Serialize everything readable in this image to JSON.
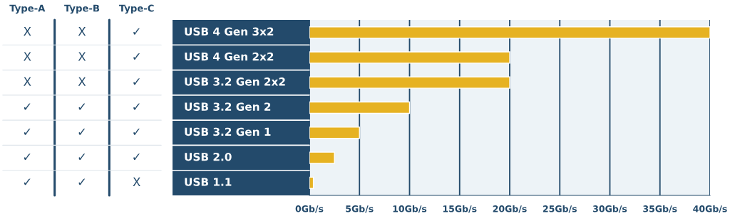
{
  "chart_data": [
    {
      "type": "other",
      "categories": [
        "Type-A",
        "Type-B",
        "Type-C"
      ],
      "annotations": [
        "X",
        "X",
        "✓",
        "X",
        "X",
        "✓",
        "X",
        "X",
        "✓",
        "✓",
        "✓",
        "✓",
        "✓",
        "✓",
        "✓",
        "✓",
        "✓",
        "✓",
        "✓",
        "✓",
        "X"
      ]
    },
    {
      "type": "bar",
      "orientation": "horizontal",
      "categories": [
        "USB 4 Gen 3x2",
        "USB 4 Gen 2x2",
        "USB 3.2 Gen 2x2",
        "USB 3.2 Gen 2",
        "USB 3.2 Gen 1",
        "USB 2.0",
        "USB 1.1"
      ],
      "values": [
        40,
        20,
        20,
        10,
        5,
        2.5,
        0.4
      ],
      "color": "#e6b222",
      "xlim": [
        0,
        40
      ],
      "xticks": [
        {
          "value": 0,
          "label": "0Gb/s"
        },
        {
          "value": 5,
          "label": "5Gb/s"
        },
        {
          "value": 10,
          "label": "10Gb/s"
        },
        {
          "value": 15,
          "label": "15Gb/s"
        },
        {
          "value": 20,
          "label": "20Gb/s"
        },
        {
          "value": 25,
          "label": "25Gb/s"
        },
        {
          "value": 30,
          "label": "30Gb/s"
        },
        {
          "value": 35,
          "label": "35Gb/s"
        },
        {
          "value": 40,
          "label": "40Gb/s"
        }
      ],
      "grid": "x",
      "legend": false
    }
  ]
}
